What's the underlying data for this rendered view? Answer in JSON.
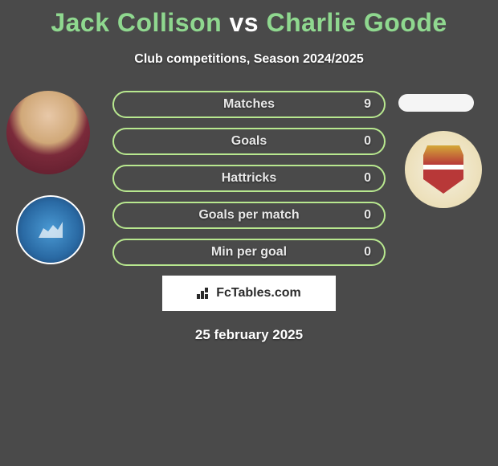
{
  "title": {
    "player1": "Jack Collison",
    "vs": "vs",
    "player2": "Charlie Goode"
  },
  "subtitle": "Club competitions, Season 2024/2025",
  "stats": [
    {
      "label": "Matches",
      "value": "9"
    },
    {
      "label": "Goals",
      "value": "0"
    },
    {
      "label": "Hattricks",
      "value": "0"
    },
    {
      "label": "Goals per match",
      "value": "0"
    },
    {
      "label": "Min per goal",
      "value": "0"
    }
  ],
  "branding": "FcTables.com",
  "date": "25 february 2025",
  "colors": {
    "accent_green": "#8fd88f",
    "border_green": "#b8e88f",
    "bg": "#4a4a4a",
    "text": "#ffffff"
  }
}
